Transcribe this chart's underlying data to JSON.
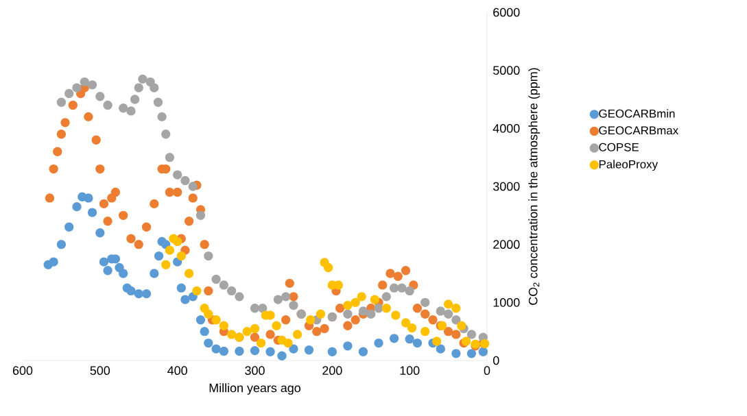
{
  "chart_data": {
    "type": "scatter",
    "xlabel": "Million years ago",
    "ylabel": "CO$_{2}$ concentration in the atmosphere (ppm)",
    "xlim": [
      600,
      0
    ],
    "ylim": [
      0,
      6000
    ],
    "xticks": [
      600,
      500,
      400,
      300,
      200,
      100,
      0
    ],
    "yticks": [
      0,
      1000,
      2000,
      3000,
      4000,
      5000,
      6000
    ],
    "legend": "right",
    "marker": "circle",
    "series": [
      {
        "name": "GEOCARBmin",
        "color": "#5b9bd5",
        "x": [
          567,
          560,
          550,
          540,
          530,
          523,
          515,
          510,
          500,
          495,
          490,
          485,
          480,
          475,
          470,
          465,
          460,
          450,
          440,
          430,
          424,
          420,
          415,
          410,
          400,
          395,
          390,
          380,
          370,
          365,
          360,
          350,
          340,
          320,
          300,
          280,
          265,
          250,
          230,
          200,
          180,
          160,
          140,
          120,
          100,
          90,
          70,
          60,
          40,
          20,
          5
        ],
        "values": [
          1650,
          1700,
          2000,
          2300,
          2650,
          2820,
          2800,
          2550,
          2200,
          1700,
          1550,
          1750,
          1750,
          1600,
          1500,
          1250,
          1200,
          1150,
          1150,
          1500,
          1800,
          2050,
          2000,
          null,
          1700,
          1250,
          1050,
          1100,
          700,
          500,
          300,
          200,
          160,
          160,
          170,
          150,
          80,
          200,
          180,
          150,
          250,
          150,
          300,
          380,
          370,
          300,
          300,
          200,
          120,
          120,
          150
        ]
      },
      {
        "name": "GEOCARBmax",
        "color": "#ed7d31",
        "x": [
          565,
          560,
          555,
          550,
          545,
          535,
          525,
          520,
          515,
          505,
          500,
          495,
          490,
          485,
          480,
          470,
          460,
          450,
          440,
          430,
          420,
          415,
          410,
          400,
          395,
          390,
          385,
          380,
          375,
          370,
          365,
          360,
          355,
          340,
          320,
          300,
          280,
          270,
          260,
          255,
          250,
          240,
          230,
          220,
          210,
          200,
          195,
          190,
          180,
          170,
          160,
          150,
          140,
          135,
          125,
          115,
          105,
          95,
          90,
          80,
          70,
          60,
          50,
          40,
          30,
          15,
          5
        ],
        "values": [
          2800,
          3300,
          3600,
          3900,
          4100,
          4400,
          4600,
          4700,
          4200,
          3800,
          3300,
          2700,
          2400,
          2800,
          2900,
          2500,
          2100,
          2000,
          2300,
          2700,
          3300,
          3300,
          2900,
          2900,
          2100,
          1900,
          2400,
          2800,
          3020,
          2600,
          2000,
          1200,
          700,
          500,
          400,
          400,
          450,
          350,
          700,
          1330,
          1100,
          800,
          600,
          500,
          550,
          750,
          1200,
          900,
          600,
          700,
          800,
          900,
          1000,
          1300,
          1500,
          1450,
          1550,
          1300,
          900,
          800,
          700,
          600,
          500,
          450,
          300,
          250,
          300
        ]
      },
      {
        "name": "COPSE",
        "color": "#a5a5a5",
        "x": [
          550,
          540,
          530,
          520,
          510,
          500,
          490,
          470,
          460,
          455,
          450,
          445,
          435,
          430,
          425,
          420,
          415,
          410,
          400,
          390,
          380,
          370,
          360,
          350,
          340,
          330,
          320,
          300,
          290,
          270,
          260,
          250,
          240,
          220,
          200,
          180,
          160,
          150,
          140,
          130,
          120,
          110,
          100,
          80,
          60,
          50,
          40,
          30,
          20,
          5
        ],
        "values": [
          4450,
          4600,
          4700,
          4800,
          4750,
          4550,
          4400,
          4350,
          4300,
          4500,
          4700,
          4850,
          4800,
          4700,
          4450,
          4200,
          3900,
          3500,
          3200,
          3100,
          3000,
          2500,
          1800,
          1400,
          1300,
          1200,
          1100,
          900,
          900,
          1050,
          1100,
          950,
          800,
          700,
          750,
          800,
          850,
          800,
          900,
          1100,
          1250,
          1250,
          1200,
          1000,
          850,
          800,
          700,
          550,
          450,
          400
        ]
      },
      {
        "name": "PaleoProxy",
        "color": "#ffc000",
        "x": [
          415,
          410,
          405,
          400,
          395,
          385,
          375,
          365,
          360,
          350,
          340,
          330,
          320,
          310,
          300,
          292,
          286,
          280,
          272,
          265,
          257,
          245,
          228,
          215,
          210,
          205,
          200,
          192,
          180,
          170,
          162,
          145,
          130,
          118,
          105,
          97,
          80,
          65,
          58,
          50,
          40,
          33,
          27,
          15,
          3
        ],
        "values": [
          1650,
          1900,
          2100,
          2050,
          1800,
          1500,
          1200,
          900,
          800,
          700,
          600,
          450,
          400,
          500,
          550,
          300,
          780,
          780,
          600,
          350,
          300,
          450,
          700,
          800,
          1690,
          1600,
          1300,
          1300,
          950,
          1000,
          1100,
          1050,
          900,
          780,
          650,
          560,
          500,
          330,
          600,
          970,
          900,
          600,
          330,
          280,
          290
        ]
      }
    ]
  }
}
